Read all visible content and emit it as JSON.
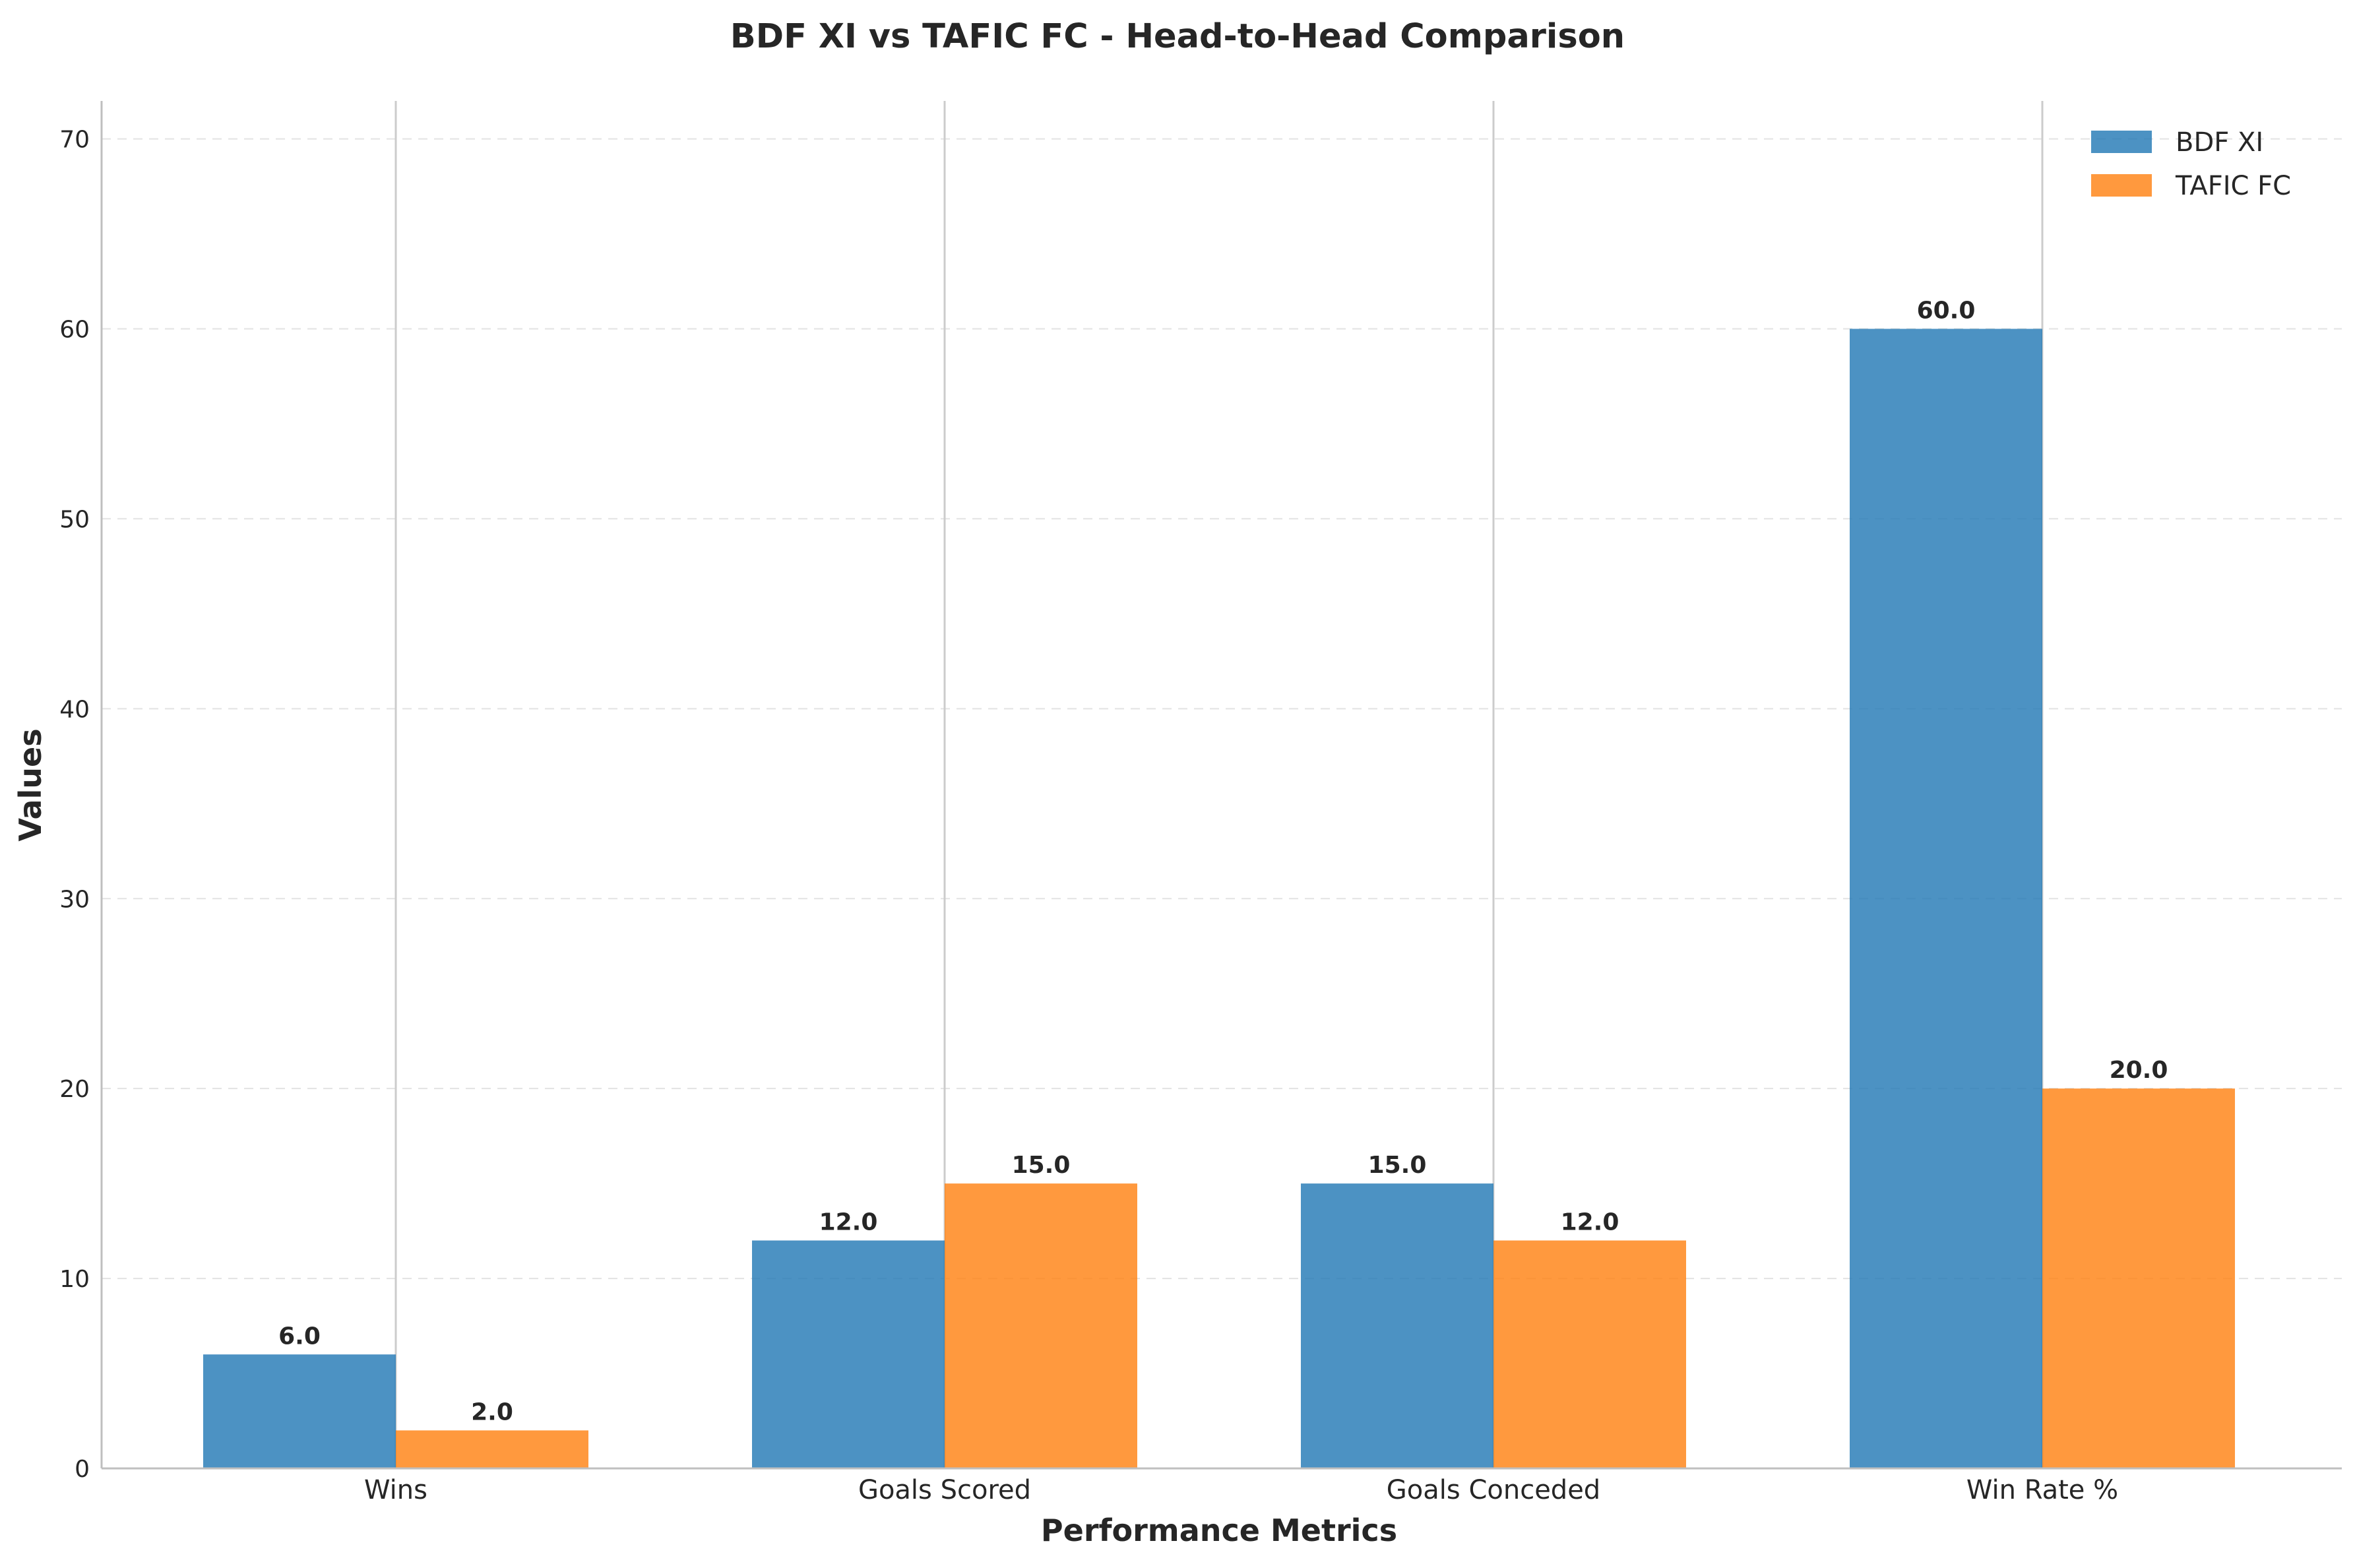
{
  "chart_data": {
    "type": "bar",
    "title": "BDF XI vs TAFIC FC - Head-to-Head Comparison",
    "xlabel": "Performance Metrics",
    "ylabel": "Values",
    "categories": [
      "Wins",
      "Goals Scored",
      "Goals Conceded",
      "Win Rate %"
    ],
    "series": [
      {
        "name": "BDF XI",
        "values": [
          6.0,
          12.0,
          15.0,
          60.0
        ],
        "color": "#1f77b4"
      },
      {
        "name": "TAFIC FC",
        "values": [
          2.0,
          15.0,
          12.0,
          20.0
        ],
        "color": "#ff7f0e"
      }
    ],
    "value_labels": [
      [
        "6.0",
        "12.0",
        "15.0",
        "60.0"
      ],
      [
        "2.0",
        "15.0",
        "12.0",
        "20.0"
      ]
    ],
    "ylim": [
      0,
      72
    ],
    "yticks": [
      0,
      10,
      20,
      30,
      40,
      50,
      60,
      70
    ],
    "ytick_labels": [
      "0",
      "10",
      "20",
      "30",
      "40",
      "50",
      "60",
      "70"
    ],
    "grid": "y-dashed",
    "legend": "top-right"
  }
}
